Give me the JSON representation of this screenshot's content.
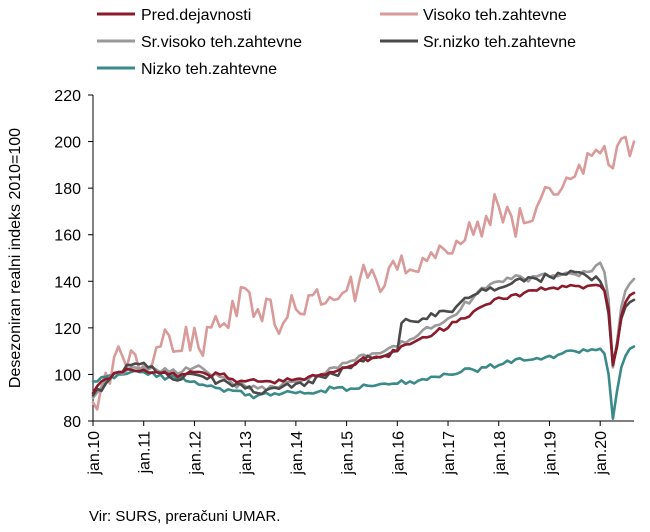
{
  "chart_data": {
    "type": "line",
    "title": "",
    "xlabel": "",
    "ylabel": "Desezoniran realni indeks 2010=100",
    "ylim": [
      80,
      220
    ],
    "yticks": [
      80,
      100,
      120,
      140,
      160,
      180,
      200,
      220
    ],
    "xlim": [
      "2010-01",
      "2020-09"
    ],
    "xtick_labels": [
      "jan.10",
      "jan.11",
      "jan.12",
      "jan.13",
      "jan.14",
      "jan.15",
      "jan.16",
      "jan.17",
      "jan.18",
      "jan.19",
      "jan.20"
    ],
    "grid": false,
    "legend_position": "top",
    "frequency": "monthly",
    "series": [
      {
        "name": "Pred.dejavnosti",
        "color": "#8b1a2b",
        "knots": [
          [
            "2010-01",
            92
          ],
          [
            "2010-02",
            95
          ],
          [
            "2010-04",
            98
          ],
          [
            "2010-07",
            101
          ],
          [
            "2010-10",
            102
          ],
          [
            "2011-01",
            102
          ],
          [
            "2011-04",
            101
          ],
          [
            "2011-07",
            100
          ],
          [
            "2011-10",
            100
          ],
          [
            "2012-01",
            101
          ],
          [
            "2012-04",
            100
          ],
          [
            "2012-07",
            100
          ],
          [
            "2012-10",
            98
          ],
          [
            "2013-01",
            97
          ],
          [
            "2013-04",
            97
          ],
          [
            "2013-07",
            97
          ],
          [
            "2013-10",
            97
          ],
          [
            "2014-01",
            98
          ],
          [
            "2014-04",
            99
          ],
          [
            "2014-07",
            100
          ],
          [
            "2014-10",
            101
          ],
          [
            "2015-01",
            103
          ],
          [
            "2015-04",
            106
          ],
          [
            "2015-07",
            107
          ],
          [
            "2015-10",
            108
          ],
          [
            "2016-01",
            110
          ],
          [
            "2016-04",
            113
          ],
          [
            "2016-07",
            116
          ],
          [
            "2016-10",
            118
          ],
          [
            "2017-01",
            120
          ],
          [
            "2017-04",
            124
          ],
          [
            "2017-07",
            127
          ],
          [
            "2017-10",
            130
          ],
          [
            "2018-01",
            133
          ],
          [
            "2018-04",
            134
          ],
          [
            "2018-07",
            135
          ],
          [
            "2018-10",
            136
          ],
          [
            "2019-01",
            137
          ],
          [
            "2019-04",
            138
          ],
          [
            "2019-07",
            138
          ],
          [
            "2019-10",
            138
          ],
          [
            "2020-01",
            138
          ],
          [
            "2020-02",
            136
          ],
          [
            "2020-03",
            128
          ],
          [
            "2020-04",
            104
          ],
          [
            "2020-05",
            112
          ],
          [
            "2020-06",
            125
          ],
          [
            "2020-07",
            131
          ],
          [
            "2020-08",
            134
          ],
          [
            "2020-09",
            135
          ]
        ],
        "noise": 1.2
      },
      {
        "name": "Visoko teh.zahtevne",
        "color": "#d99a9a",
        "knots": [
          [
            "2010-01",
            88
          ],
          [
            "2010-03",
            95
          ],
          [
            "2010-05",
            96
          ],
          [
            "2010-07",
            112
          ],
          [
            "2010-09",
            103
          ],
          [
            "2011-01",
            104
          ],
          [
            "2011-05",
            112
          ],
          [
            "2011-09",
            110
          ],
          [
            "2012-01",
            120
          ],
          [
            "2012-03",
            108
          ],
          [
            "2012-06",
            125
          ],
          [
            "2012-09",
            120
          ],
          [
            "2013-01",
            137
          ],
          [
            "2013-04",
            128
          ],
          [
            "2013-07",
            132
          ],
          [
            "2013-10",
            122
          ],
          [
            "2014-01",
            128
          ],
          [
            "2014-04",
            134
          ],
          [
            "2014-07",
            130
          ],
          [
            "2014-10",
            132
          ],
          [
            "2015-01",
            136
          ],
          [
            "2015-04",
            140
          ],
          [
            "2015-07",
            145
          ],
          [
            "2015-10",
            138
          ],
          [
            "2016-01",
            145
          ],
          [
            "2016-04",
            145
          ],
          [
            "2016-07",
            150
          ],
          [
            "2016-10",
            150
          ],
          [
            "2017-01",
            152
          ],
          [
            "2017-04",
            156
          ],
          [
            "2017-07",
            160
          ],
          [
            "2017-10",
            168
          ],
          [
            "2018-01",
            172
          ],
          [
            "2018-04",
            168
          ],
          [
            "2018-07",
            165
          ],
          [
            "2018-10",
            172
          ],
          [
            "2019-01",
            180
          ],
          [
            "2019-04",
            180
          ],
          [
            "2019-07",
            185
          ],
          [
            "2019-10",
            195
          ],
          [
            "2020-01",
            195
          ],
          [
            "2020-03",
            190
          ],
          [
            "2020-05",
            198
          ],
          [
            "2020-07",
            202
          ],
          [
            "2020-09",
            200
          ]
        ],
        "noise": 8
      },
      {
        "name": "Sr.visoko teh.zahtevne",
        "color": "#9a9a9a",
        "knots": [
          [
            "2010-01",
            90
          ],
          [
            "2010-04",
            97
          ],
          [
            "2010-07",
            101
          ],
          [
            "2010-10",
            103
          ],
          [
            "2011-01",
            103
          ],
          [
            "2011-04",
            102
          ],
          [
            "2011-07",
            101
          ],
          [
            "2011-10",
            101
          ],
          [
            "2012-01",
            103
          ],
          [
            "2012-04",
            101
          ],
          [
            "2012-07",
            99
          ],
          [
            "2012-10",
            96
          ],
          [
            "2013-01",
            95
          ],
          [
            "2013-04",
            94
          ],
          [
            "2013-07",
            95
          ],
          [
            "2013-10",
            96
          ],
          [
            "2014-01",
            97
          ],
          [
            "2014-04",
            98
          ],
          [
            "2014-07",
            100
          ],
          [
            "2014-10",
            103
          ],
          [
            "2015-01",
            105
          ],
          [
            "2015-04",
            108
          ],
          [
            "2015-07",
            109
          ],
          [
            "2015-10",
            110
          ],
          [
            "2016-01",
            112
          ],
          [
            "2016-04",
            115
          ],
          [
            "2016-07",
            119
          ],
          [
            "2016-10",
            121
          ],
          [
            "2017-01",
            124
          ],
          [
            "2017-04",
            128
          ],
          [
            "2017-07",
            133
          ],
          [
            "2017-10",
            137
          ],
          [
            "2018-01",
            140
          ],
          [
            "2018-04",
            141
          ],
          [
            "2018-07",
            141
          ],
          [
            "2018-10",
            142
          ],
          [
            "2019-01",
            142
          ],
          [
            "2019-04",
            143
          ],
          [
            "2019-07",
            143
          ],
          [
            "2019-10",
            144
          ],
          [
            "2020-01",
            148
          ],
          [
            "2020-02",
            144
          ],
          [
            "2020-03",
            132
          ],
          [
            "2020-04",
            103
          ],
          [
            "2020-05",
            114
          ],
          [
            "2020-06",
            129
          ],
          [
            "2020-07",
            136
          ],
          [
            "2020-08",
            139
          ],
          [
            "2020-09",
            141
          ]
        ],
        "noise": 1.6
      },
      {
        "name": "Sr.nizko teh.zahtevne",
        "color": "#4a4a4a",
        "knots": [
          [
            "2010-01",
            91
          ],
          [
            "2010-04",
            96
          ],
          [
            "2010-07",
            101
          ],
          [
            "2010-10",
            104
          ],
          [
            "2011-01",
            105
          ],
          [
            "2011-04",
            101
          ],
          [
            "2011-07",
            99
          ],
          [
            "2011-10",
            98
          ],
          [
            "2012-01",
            100
          ],
          [
            "2012-04",
            98
          ],
          [
            "2012-07",
            97
          ],
          [
            "2012-10",
            95
          ],
          [
            "2013-01",
            94
          ],
          [
            "2013-04",
            92
          ],
          [
            "2013-07",
            94
          ],
          [
            "2013-10",
            95
          ],
          [
            "2014-01",
            96
          ],
          [
            "2014-04",
            97
          ],
          [
            "2014-07",
            99
          ],
          [
            "2014-10",
            100
          ],
          [
            "2015-01",
            103
          ],
          [
            "2015-04",
            106
          ],
          [
            "2015-07",
            107
          ],
          [
            "2015-10",
            108
          ],
          [
            "2016-01",
            110
          ],
          [
            "2016-02",
            122
          ],
          [
            "2016-04",
            123
          ],
          [
            "2016-07",
            124
          ],
          [
            "2016-10",
            125
          ],
          [
            "2017-01",
            127
          ],
          [
            "2017-04",
            131
          ],
          [
            "2017-07",
            134
          ],
          [
            "2017-10",
            136
          ],
          [
            "2018-01",
            137
          ],
          [
            "2018-04",
            139
          ],
          [
            "2018-07",
            140
          ],
          [
            "2018-10",
            141
          ],
          [
            "2019-01",
            142
          ],
          [
            "2019-04",
            143
          ],
          [
            "2019-07",
            144
          ],
          [
            "2019-10",
            142
          ],
          [
            "2020-01",
            140
          ],
          [
            "2020-02",
            136
          ],
          [
            "2020-03",
            126
          ],
          [
            "2020-04",
            104
          ],
          [
            "2020-05",
            113
          ],
          [
            "2020-06",
            124
          ],
          [
            "2020-07",
            129
          ],
          [
            "2020-08",
            131
          ],
          [
            "2020-09",
            132
          ]
        ],
        "noise": 1.6
      },
      {
        "name": "Nizko teh.zahtevne",
        "color": "#3a8a8a",
        "knots": [
          [
            "2010-01",
            97
          ],
          [
            "2010-04",
            99
          ],
          [
            "2010-07",
            100
          ],
          [
            "2010-10",
            101
          ],
          [
            "2011-01",
            101
          ],
          [
            "2011-04",
            99
          ],
          [
            "2011-07",
            99
          ],
          [
            "2011-10",
            99
          ],
          [
            "2012-01",
            97
          ],
          [
            "2012-04",
            95
          ],
          [
            "2012-07",
            94
          ],
          [
            "2012-10",
            93
          ],
          [
            "2013-01",
            91
          ],
          [
            "2013-04",
            91
          ],
          [
            "2013-07",
            91
          ],
          [
            "2013-10",
            92
          ],
          [
            "2014-01",
            92
          ],
          [
            "2014-04",
            92
          ],
          [
            "2014-07",
            93
          ],
          [
            "2014-10",
            94
          ],
          [
            "2015-01",
            93
          ],
          [
            "2015-04",
            94
          ],
          [
            "2015-07",
            95
          ],
          [
            "2015-10",
            96
          ],
          [
            "2016-01",
            96
          ],
          [
            "2016-04",
            97
          ],
          [
            "2016-07",
            98
          ],
          [
            "2016-10",
            99
          ],
          [
            "2017-01",
            100
          ],
          [
            "2017-04",
            101
          ],
          [
            "2017-07",
            102
          ],
          [
            "2017-10",
            103
          ],
          [
            "2018-01",
            104
          ],
          [
            "2018-04",
            105
          ],
          [
            "2018-07",
            106
          ],
          [
            "2018-10",
            107
          ],
          [
            "2019-01",
            108
          ],
          [
            "2019-04",
            109
          ],
          [
            "2019-07",
            110
          ],
          [
            "2019-10",
            110
          ],
          [
            "2020-01",
            111
          ],
          [
            "2020-02",
            109
          ],
          [
            "2020-03",
            100
          ],
          [
            "2020-04",
            81
          ],
          [
            "2020-05",
            93
          ],
          [
            "2020-06",
            103
          ],
          [
            "2020-07",
            108
          ],
          [
            "2020-08",
            111
          ],
          [
            "2020-09",
            112
          ]
        ],
        "noise": 1.3
      }
    ]
  },
  "source_text": "Vir: SURS, preračuni UMAR."
}
